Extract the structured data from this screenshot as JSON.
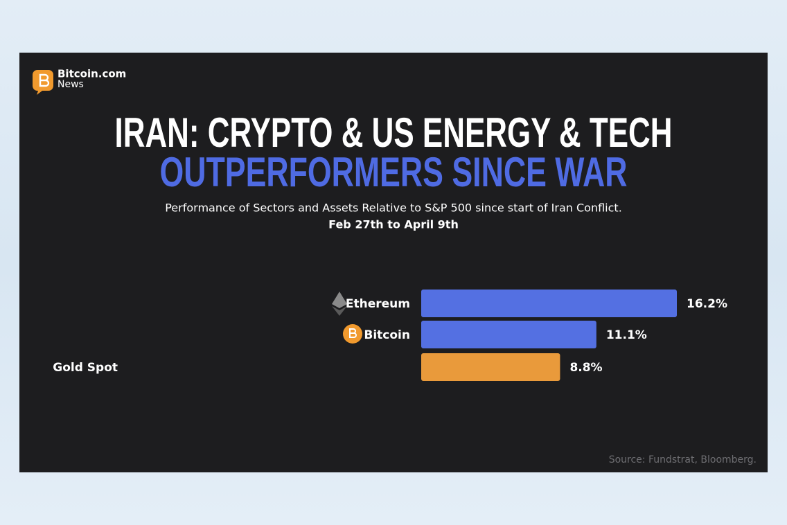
{
  "brand": {
    "name": "Bitcoin.com",
    "sub": "News"
  },
  "chart_data": {
    "type": "hbar",
    "title": [
      "IRAN: CRYPTO & US ENERGY & TECH",
      "OUTPERFORMERS SINCE WAR"
    ],
    "title_colors": [
      "#ffffff",
      "#4f6be3"
    ],
    "subtitle": [
      "Performance of Sectors and Assets Relative to S&P 500 since start of Iran Conflict.",
      "Feb 27th to April 9th"
    ],
    "categories": [
      "Ethereum",
      "Bitcoin",
      "Gold Spot"
    ],
    "values": [
      16.2,
      11.1,
      8.8
    ],
    "value_labels": [
      "16.2%",
      "11.1%",
      "8.8%"
    ],
    "colors": [
      "#5470e2",
      "#5470e2",
      "#e99a3b"
    ],
    "source": "Source: Fundstrat, Bloomberg."
  }
}
